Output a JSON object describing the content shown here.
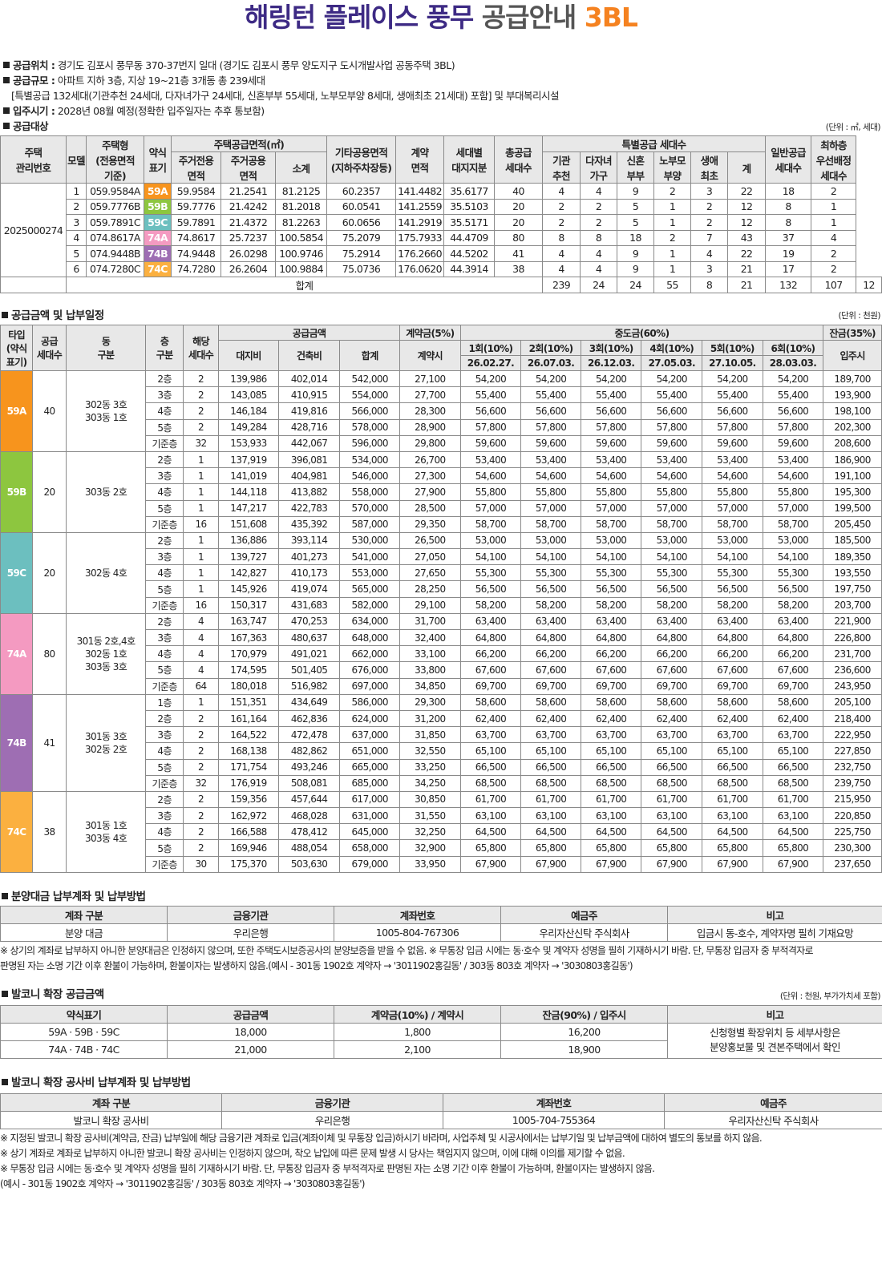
{
  "title": {
    "main": "해링턴 플레이스 풍무",
    "sub": "공급안내",
    "tag": "3BL"
  },
  "info": {
    "location_label": "공급위치 :",
    "location": "경기도 김포시 풍무동 370-37번지 일대 (경기도 김포시 풍무 양도지구 도시개발사업 공동주택 3BL)",
    "scale_label": "공급규모 :",
    "scale": "아파트 지하 3층, 지상 19~21층 3개동 총 239세대",
    "scale_note": "[특별공급 132세대(기관추천 24세대, 다자녀가구 24세대, 신혼부부 55세대, 노부모부양 8세대, 생애최초 21세대) 포함] 및 부대복리시설",
    "move_label": "입주시기 :",
    "move": "2028년 08월 예정(정확한 입주일자는 추후 통보함)",
    "target_label": "공급대상",
    "target_unit": "(단위 : ㎡, 세대)"
  },
  "supply_table": {
    "headers": {
      "mgmt": "주택\n관리번호",
      "model": "모델",
      "type": "주택형\n(전용면적\n기준)",
      "abbr": "약식\n표기",
      "area_group": "주택공급면적(㎡)",
      "excl": "주거전용\n면적",
      "common": "주거공용\n면적",
      "subtotal": "소계",
      "other": "기타공용면적\n(지하주차장등)",
      "contract": "계약\n면적",
      "land": "세대별\n대지지분",
      "total": "총공급\n세대수",
      "special_group": "특별공급 세대수",
      "inst": "기관\n추천",
      "multi": "다자녀\n가구",
      "newly": "신혼\n부부",
      "elder": "노부모\n부양",
      "first": "생애\n최초",
      "sum": "계",
      "general": "일반공급\n세대수",
      "lowest": "최하층\n우선배정\n세대수"
    },
    "mgmt_no": "2025000274",
    "rows": [
      {
        "model": "1",
        "type": "059.9584A",
        "abbr": "59A",
        "color": "#f7941d",
        "excl": "59.9584",
        "common": "21.2541",
        "subtotal": "81.2125",
        "other": "60.2357",
        "contract": "141.4482",
        "land": "35.6177",
        "total": "40",
        "inst": "4",
        "multi": "4",
        "newly": "9",
        "elder": "2",
        "first": "3",
        "sum": "22",
        "general": "18",
        "lowest": "2"
      },
      {
        "model": "2",
        "type": "059.7776B",
        "abbr": "59B",
        "color": "#8dc63f",
        "excl": "59.7776",
        "common": "21.4242",
        "subtotal": "81.2018",
        "other": "60.0541",
        "contract": "141.2559",
        "land": "35.5103",
        "total": "20",
        "inst": "2",
        "multi": "2",
        "newly": "5",
        "elder": "1",
        "first": "2",
        "sum": "12",
        "general": "8",
        "lowest": "1"
      },
      {
        "model": "3",
        "type": "059.7891C",
        "abbr": "59C",
        "color": "#6cbfbf",
        "excl": "59.7891",
        "common": "21.4372",
        "subtotal": "81.2263",
        "other": "60.0656",
        "contract": "141.2919",
        "land": "35.5171",
        "total": "20",
        "inst": "2",
        "multi": "2",
        "newly": "5",
        "elder": "1",
        "first": "2",
        "sum": "12",
        "general": "8",
        "lowest": "1"
      },
      {
        "model": "4",
        "type": "074.8617A",
        "abbr": "74A",
        "color": "#f49ac1",
        "excl": "74.8617",
        "common": "25.7237",
        "subtotal": "100.5854",
        "other": "75.2079",
        "contract": "175.7933",
        "land": "44.4709",
        "total": "80",
        "inst": "8",
        "multi": "8",
        "newly": "18",
        "elder": "2",
        "first": "7",
        "sum": "43",
        "general": "37",
        "lowest": "4"
      },
      {
        "model": "5",
        "type": "074.9448B",
        "abbr": "74B",
        "color": "#9e6eb3",
        "excl": "74.9448",
        "common": "26.0298",
        "subtotal": "100.9746",
        "other": "75.2914",
        "contract": "176.2660",
        "land": "44.5202",
        "total": "41",
        "inst": "4",
        "multi": "4",
        "newly": "9",
        "elder": "1",
        "first": "4",
        "sum": "22",
        "general": "19",
        "lowest": "2"
      },
      {
        "model": "6",
        "type": "074.7280C",
        "abbr": "74C",
        "color": "#fbb040",
        "excl": "74.7280",
        "common": "26.2604",
        "subtotal": "100.9884",
        "other": "75.0736",
        "contract": "176.0620",
        "land": "44.3914",
        "total": "38",
        "inst": "4",
        "multi": "4",
        "newly": "9",
        "elder": "1",
        "first": "3",
        "sum": "21",
        "general": "17",
        "lowest": "2"
      }
    ],
    "total_row": {
      "label": "합계",
      "total": "239",
      "inst": "24",
      "multi": "24",
      "newly": "55",
      "elder": "8",
      "first": "21",
      "sum": "132",
      "general": "107",
      "lowest": "12"
    }
  },
  "price": {
    "section_title": "공급금액 및 납부일정",
    "unit": "(단위 : 천원)",
    "headers": {
      "type": "타입\n(약식\n표기)",
      "units": "공급\n세대수",
      "dong": "동\n구분",
      "floor": "층\n구분",
      "applicable": "해당\n세대수",
      "supply_group": "공급금액",
      "land": "대지비",
      "building": "건축비",
      "sum": "합계",
      "deposit_group": "계약금(5%)",
      "deposit": "계약시",
      "middle_group": "중도금(60%)",
      "balance_group": "잔금(35%)",
      "balance": "입주시"
    },
    "installments": [
      {
        "label": "1회(10%)",
        "date": "26.02.27."
      },
      {
        "label": "2회(10%)",
        "date": "26.07.03."
      },
      {
        "label": "3회(10%)",
        "date": "26.12.03."
      },
      {
        "label": "4회(10%)",
        "date": "27.05.03."
      },
      {
        "label": "5회(10%)",
        "date": "27.10.05."
      },
      {
        "label": "6회(10%)",
        "date": "28.03.03."
      }
    ],
    "groups": [
      {
        "type": "59A",
        "color": "#f7941d",
        "units": "40",
        "dong": "302동 3호\n303동 1호",
        "rows": [
          [
            "2층",
            "2",
            "139,986",
            "402,014",
            "542,000",
            "27,100",
            "54,200",
            "189,700"
          ],
          [
            "3층",
            "2",
            "143,085",
            "410,915",
            "554,000",
            "27,700",
            "55,400",
            "193,900"
          ],
          [
            "4층",
            "2",
            "146,184",
            "419,816",
            "566,000",
            "28,300",
            "56,600",
            "198,100"
          ],
          [
            "5층",
            "2",
            "149,284",
            "428,716",
            "578,000",
            "28,900",
            "57,800",
            "202,300"
          ],
          [
            "기준층",
            "32",
            "153,933",
            "442,067",
            "596,000",
            "29,800",
            "59,600",
            "208,600"
          ]
        ]
      },
      {
        "type": "59B",
        "color": "#8dc63f",
        "units": "20",
        "dong": "303동 2호",
        "rows": [
          [
            "2층",
            "1",
            "137,919",
            "396,081",
            "534,000",
            "26,700",
            "53,400",
            "186,900"
          ],
          [
            "3층",
            "1",
            "141,019",
            "404,981",
            "546,000",
            "27,300",
            "54,600",
            "191,100"
          ],
          [
            "4층",
            "1",
            "144,118",
            "413,882",
            "558,000",
            "27,900",
            "55,800",
            "195,300"
          ],
          [
            "5층",
            "1",
            "147,217",
            "422,783",
            "570,000",
            "28,500",
            "57,000",
            "199,500"
          ],
          [
            "기준층",
            "16",
            "151,608",
            "435,392",
            "587,000",
            "29,350",
            "58,700",
            "205,450"
          ]
        ]
      },
      {
        "type": "59C",
        "color": "#6cbfbf",
        "units": "20",
        "dong": "302동 4호",
        "rows": [
          [
            "2층",
            "1",
            "136,886",
            "393,114",
            "530,000",
            "26,500",
            "53,000",
            "185,500"
          ],
          [
            "3층",
            "1",
            "139,727",
            "401,273",
            "541,000",
            "27,050",
            "54,100",
            "189,350"
          ],
          [
            "4층",
            "1",
            "142,827",
            "410,173",
            "553,000",
            "27,650",
            "55,300",
            "193,550"
          ],
          [
            "5층",
            "1",
            "145,926",
            "419,074",
            "565,000",
            "28,250",
            "56,500",
            "197,750"
          ],
          [
            "기준층",
            "16",
            "150,317",
            "431,683",
            "582,000",
            "29,100",
            "58,200",
            "203,700"
          ]
        ]
      },
      {
        "type": "74A",
        "color": "#f49ac1",
        "units": "80",
        "dong": "301동 2호,4호\n302동 1호\n303동 3호",
        "rows": [
          [
            "2층",
            "4",
            "163,747",
            "470,253",
            "634,000",
            "31,700",
            "63,400",
            "221,900"
          ],
          [
            "3층",
            "4",
            "167,363",
            "480,637",
            "648,000",
            "32,400",
            "64,800",
            "226,800"
          ],
          [
            "4층",
            "4",
            "170,979",
            "491,021",
            "662,000",
            "33,100",
            "66,200",
            "231,700"
          ],
          [
            "5층",
            "4",
            "174,595",
            "501,405",
            "676,000",
            "33,800",
            "67,600",
            "236,600"
          ],
          [
            "기준층",
            "64",
            "180,018",
            "516,982",
            "697,000",
            "34,850",
            "69,700",
            "243,950"
          ]
        ]
      },
      {
        "type": "74B",
        "color": "#9e6eb3",
        "units": "41",
        "dong": "301동 3호\n302동 2호",
        "rows": [
          [
            "1층",
            "1",
            "151,351",
            "434,649",
            "586,000",
            "29,300",
            "58,600",
            "205,100"
          ],
          [
            "2층",
            "2",
            "161,164",
            "462,836",
            "624,000",
            "31,200",
            "62,400",
            "218,400"
          ],
          [
            "3층",
            "2",
            "164,522",
            "472,478",
            "637,000",
            "31,850",
            "63,700",
            "222,950"
          ],
          [
            "4층",
            "2",
            "168,138",
            "482,862",
            "651,000",
            "32,550",
            "65,100",
            "227,850"
          ],
          [
            "5층",
            "2",
            "171,754",
            "493,246",
            "665,000",
            "33,250",
            "66,500",
            "232,750"
          ],
          [
            "기준층",
            "32",
            "176,919",
            "508,081",
            "685,000",
            "34,250",
            "68,500",
            "239,750"
          ]
        ]
      },
      {
        "type": "74C",
        "color": "#fbb040",
        "units": "38",
        "dong": "301동 1호\n303동 4호",
        "rows": [
          [
            "2층",
            "2",
            "159,356",
            "457,644",
            "617,000",
            "30,850",
            "61,700",
            "215,950"
          ],
          [
            "3층",
            "2",
            "162,972",
            "468,028",
            "631,000",
            "31,550",
            "63,100",
            "220,850"
          ],
          [
            "4층",
            "2",
            "166,588",
            "478,412",
            "645,000",
            "32,250",
            "64,500",
            "225,750"
          ],
          [
            "5층",
            "2",
            "169,946",
            "488,054",
            "658,000",
            "32,900",
            "65,800",
            "230,300"
          ],
          [
            "기준층",
            "30",
            "175,370",
            "503,630",
            "679,000",
            "33,950",
            "67,900",
            "237,650"
          ]
        ]
      }
    ]
  },
  "account": {
    "section_title": "분양대금 납부계좌 및 납부방법",
    "headers": [
      "계좌 구분",
      "금융기관",
      "계좌번호",
      "예금주",
      "비고"
    ],
    "row": [
      "분양 대금",
      "우리은행",
      "1005-804-767306",
      "우리자산신탁 주식회사",
      "입금시 동-호수, 계약자명 필히 기재요망"
    ],
    "note1": "※ 상기의 계좌로 납부하지 아니한 분양대금은 인정하지 않으며, 또한 주택도시보증공사의 분양보증을 받을 수 없음. ※ 무통장 입금 시에는 동·호수 및 계약자 성명을 필히 기재하시기 바람. 단, 무통장 입금자 중 부적격자로",
    "note2": "판명된 자는 소명 기간 이후 환불이 가능하며, 환불이자는 발생하지 않음.(예시 - 301동 1902호 계약자 → '3011902홍길동' / 303동 803호 계약자 → '3030803홍길동')"
  },
  "balcony": {
    "section_title": "발코니 확장 공급금액",
    "unit": "(단위 : 천원, 부가가치세 포함)",
    "headers": [
      "약식표기",
      "공급금액",
      "계약금(10%) / 계약시",
      "잔금(90%) / 입주시",
      "비고"
    ],
    "rows": [
      [
        "59A · 59B · 59C",
        "18,000",
        "1,800",
        "16,200"
      ],
      [
        "74A · 74B · 74C",
        "21,000",
        "2,100",
        "18,900"
      ]
    ],
    "remark1": "신청형별 확장위치 등 세부사항은",
    "remark2": "분양홍보물 및 견본주택에서 확인"
  },
  "balcony_account": {
    "section_title": "발코니 확장 공사비 납부계좌 및 납부방법",
    "headers": [
      "계좌 구분",
      "금융기관",
      "계좌번호",
      "예금주"
    ],
    "row": [
      "발코니 확장 공사비",
      "우리은행",
      "1005-704-755364",
      "우리자산신탁 주식회사"
    ],
    "notes": [
      "※ 지정된 발코니 확장 공사비(계약금, 잔금) 납부일에 해당 금융기관 계좌로 입금(계좌이체 및 무통장 입금)하시기 바라며, 사업주체 및 시공사에서는 납부기일 및 납부금액에 대하여 별도의 통보를 하지 않음.",
      "※ 상기 계좌로 계좌로 납부하지 아니한 발코니 확장 공사비는 인정하지 않으며, 착오 납입에 따른 문제 발생 시 당사는 책임지지 않으며, 이에 대해 이의를 제기할 수 없음.",
      "※ 무통장 입금 시에는 동·호수 및 계약자 성명을 필히 기재하시기 바람. 단, 무통장 입금자 중 부적격자로 판명된 자는 소명 기간 이후 환불이 가능하며, 환불이자는 발생하지 않음.",
      "(예시 - 301동 1902호 계약자 → '3011902홍길동' / 303동 803호 계약자 → '3030803홍길동')"
    ]
  }
}
